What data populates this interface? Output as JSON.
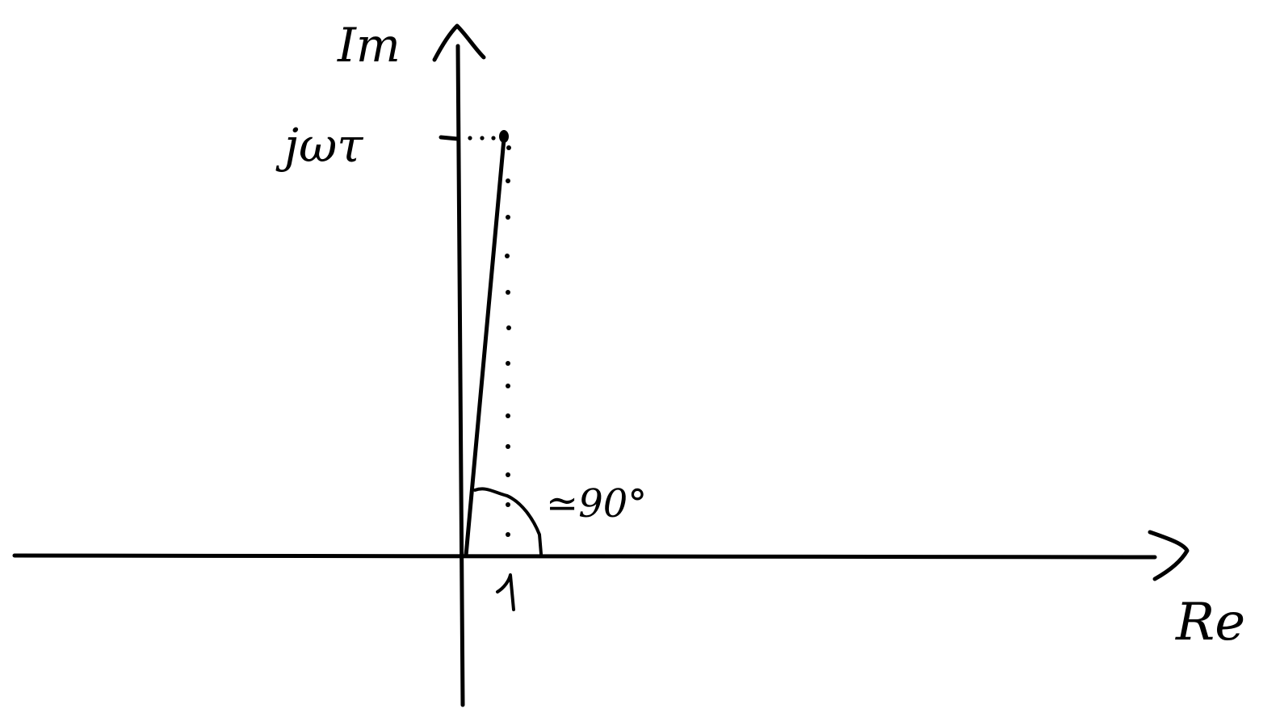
{
  "axes": {
    "imaginary_label": "Im",
    "real_label": "Re"
  },
  "labels": {
    "point_label": "jωτ",
    "unit_tick_label": "1",
    "angle_label": "≃90°"
  },
  "colors": {
    "ink": "#000000",
    "background": "#ffffff"
  }
}
